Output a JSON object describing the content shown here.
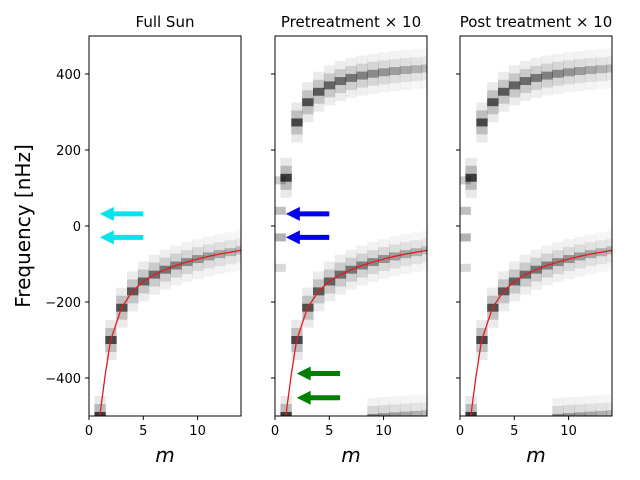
{
  "chart_data": [
    {
      "type": "heatmap",
      "title": "Full Sun",
      "xlabel": "m",
      "ylabel": "Frequency [nHz]",
      "xlim": [
        0,
        14
      ],
      "ylim": [
        -500,
        500
      ],
      "x_ticks": [
        0,
        5,
        10
      ],
      "y_ticks": [
        -400,
        -200,
        0,
        200,
        400
      ],
      "ridges": [
        "lower"
      ],
      "arrows": [
        {
          "color": "#00e5ee",
          "y": 32,
          "x_from": 5,
          "x_to": 1
        },
        {
          "color": "#00e5ee",
          "y": -30,
          "x_from": 5,
          "x_to": 1
        }
      ]
    },
    {
      "type": "heatmap",
      "title": "Pretreatment × 10",
      "xlabel": "m",
      "xlim": [
        0,
        14
      ],
      "ylim": [
        -500,
        500
      ],
      "x_ticks": [
        0,
        5,
        10
      ],
      "ridges": [
        "lower",
        "upper",
        "bottom"
      ],
      "arrows": [
        {
          "color": "#0000ee",
          "y": 32,
          "x_from": 5,
          "x_to": 1
        },
        {
          "color": "#0000ee",
          "y": -30,
          "x_from": 5,
          "x_to": 1
        },
        {
          "color": "#008000",
          "y": -388,
          "x_from": 6,
          "x_to": 2
        },
        {
          "color": "#008000",
          "y": -452,
          "x_from": 6,
          "x_to": 2
        }
      ]
    },
    {
      "type": "heatmap",
      "title": "Post treatment × 10",
      "xlabel": "m",
      "xlim": [
        0,
        14
      ],
      "ylim": [
        -500,
        500
      ],
      "x_ticks": [
        0,
        5,
        10
      ],
      "ridges": [
        "lower",
        "upper",
        "bottom"
      ],
      "arrows": []
    }
  ],
  "ridge_curve": {
    "description": "red theoretical curve",
    "m": [
      1,
      1.5,
      2,
      3,
      4,
      5,
      6,
      7,
      8,
      9,
      10,
      11,
      12,
      13,
      14
    ],
    "freq": [
      -500,
      -390,
      -300,
      -215,
      -172,
      -146,
      -128,
      -115,
      -104,
      -95,
      -87,
      -80,
      -74,
      -69,
      -64
    ]
  },
  "colors": {
    "curve": "#e41a1c",
    "ridge": "#000000"
  }
}
